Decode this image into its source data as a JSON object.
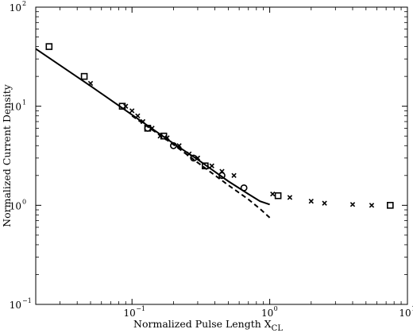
{
  "chart_data": {
    "type": "scatter",
    "title": "",
    "xlabel": "Normalized Pulse Length X",
    "xlabel_subscript": "CL",
    "ylabel": "Normalized Current Density",
    "x_scale": "log",
    "y_scale": "log",
    "xlim": [
      0.02,
      10
    ],
    "ylim": [
      0.1,
      100
    ],
    "grid": false,
    "legend": "none",
    "x_ticks": [
      {
        "value": 0.1,
        "base": "10",
        "exp": "−1"
      },
      {
        "value": 1,
        "base": "10",
        "exp": "0"
      },
      {
        "value": 10,
        "base": "10",
        "exp": "1"
      }
    ],
    "y_ticks": [
      {
        "value": 0.1,
        "base": "10",
        "exp": "−1"
      },
      {
        "value": 1,
        "base": "10",
        "exp": "0"
      },
      {
        "value": 10,
        "base": "10",
        "exp": "1"
      },
      {
        "value": 100,
        "base": "10",
        "exp": "2"
      }
    ],
    "series": [
      {
        "style": "solid-line",
        "points": [
          [
            0.02,
            38
          ],
          [
            0.05,
            16
          ],
          [
            0.1,
            8.2
          ],
          [
            0.2,
            4.2
          ],
          [
            0.3,
            2.9
          ],
          [
            0.5,
            1.75
          ],
          [
            0.7,
            1.3
          ],
          [
            0.85,
            1.1
          ],
          [
            1.0,
            1.02
          ]
        ]
      },
      {
        "style": "dashed-line",
        "points": [
          [
            0.1,
            8.0
          ],
          [
            0.2,
            4.1
          ],
          [
            0.3,
            2.7
          ],
          [
            0.5,
            1.6
          ],
          [
            0.7,
            1.15
          ],
          [
            0.85,
            0.92
          ],
          [
            1.0,
            0.75
          ]
        ]
      },
      {
        "style": "square-marker",
        "points": [
          [
            0.025,
            40
          ],
          [
            0.045,
            20
          ],
          [
            0.085,
            10
          ],
          [
            0.13,
            6
          ],
          [
            0.17,
            5
          ],
          [
            0.34,
            2.5
          ],
          [
            1.15,
            1.25
          ],
          [
            7.5,
            1.0
          ]
        ]
      },
      {
        "style": "circle-marker",
        "points": [
          [
            0.13,
            6
          ],
          [
            0.2,
            4
          ],
          [
            0.28,
            3
          ],
          [
            0.45,
            2
          ],
          [
            0.65,
            1.5
          ]
        ]
      },
      {
        "style": "x-marker",
        "points": [
          [
            0.05,
            17
          ],
          [
            0.09,
            10
          ],
          [
            0.1,
            9
          ],
          [
            0.11,
            8
          ],
          [
            0.12,
            7
          ],
          [
            0.14,
            6
          ],
          [
            0.16,
            5
          ],
          [
            0.18,
            4.8
          ],
          [
            0.22,
            4
          ],
          [
            0.26,
            3.3
          ],
          [
            0.3,
            3
          ],
          [
            0.38,
            2.5
          ],
          [
            0.45,
            2.2
          ],
          [
            0.55,
            2
          ],
          [
            1.05,
            1.3
          ],
          [
            1.4,
            1.2
          ],
          [
            2.0,
            1.1
          ],
          [
            2.5,
            1.05
          ],
          [
            4.0,
            1.02
          ],
          [
            5.5,
            1.0
          ]
        ]
      }
    ]
  }
}
